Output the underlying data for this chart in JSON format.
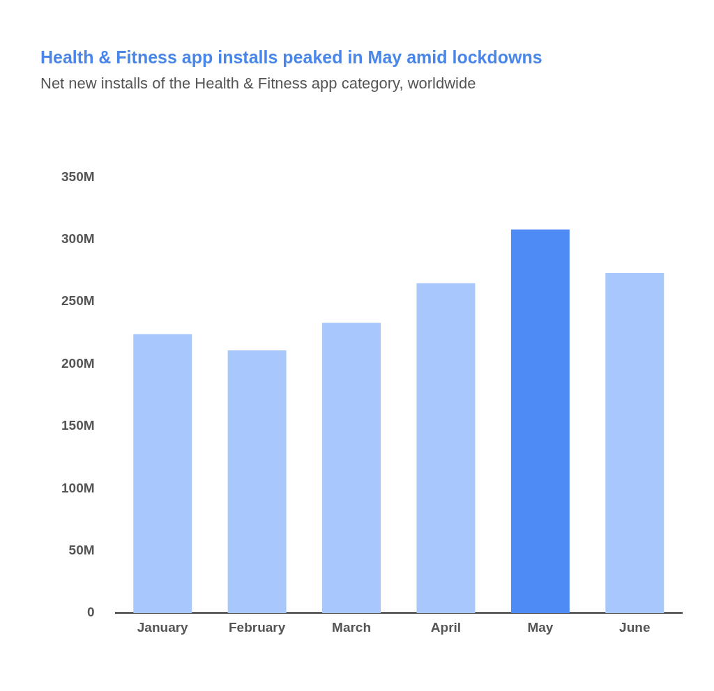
{
  "chart_data": {
    "type": "bar",
    "title": "Health & Fitness app installs peaked in May amid lockdowns",
    "subtitle": "Net new installs of the Health & Fitness app category, worldwide",
    "categories": [
      "January",
      "February",
      "March",
      "April",
      "May",
      "June"
    ],
    "values": [
      224000000,
      211000000,
      233000000,
      265000000,
      308000000,
      273000000
    ],
    "colors": [
      "#a8c7fa",
      "#a8c7fa",
      "#a8c7fa",
      "#a8c7fa",
      "#4f8bf5",
      "#a8c7fa"
    ],
    "ylim": [
      0,
      350000000
    ],
    "yticks": [
      {
        "value": 0,
        "label": "0"
      },
      {
        "value": 50000000,
        "label": "50M"
      },
      {
        "value": 100000000,
        "label": "100M"
      },
      {
        "value": 150000000,
        "label": "150M"
      },
      {
        "value": 200000000,
        "label": "200M"
      },
      {
        "value": 250000000,
        "label": "250M"
      },
      {
        "value": 300000000,
        "label": "300M"
      },
      {
        "value": 350000000,
        "label": "350M"
      }
    ],
    "grid": false,
    "legend": false
  }
}
